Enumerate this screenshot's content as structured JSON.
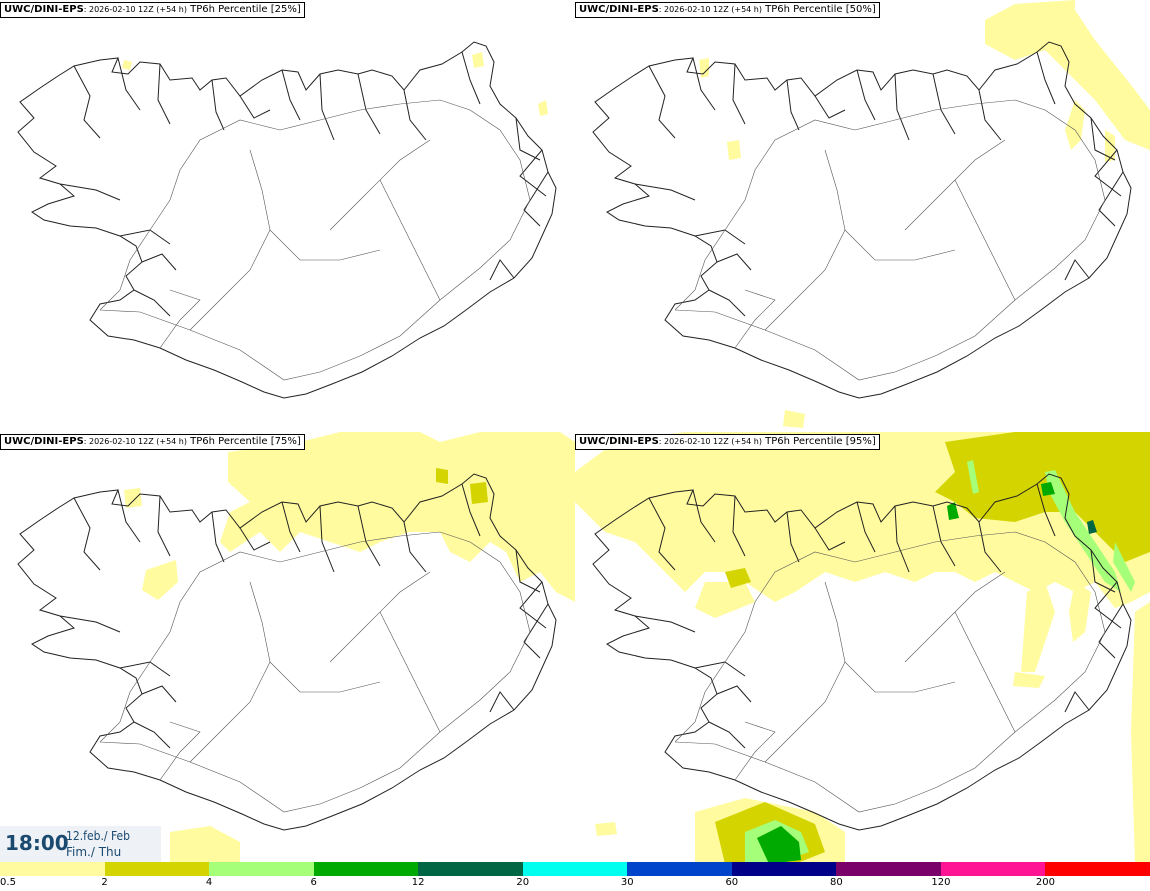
{
  "panels": [
    {
      "source": "UWC/DINI-EPS",
      "run": ": 2026-02-10 12Z (+54 h)",
      "product": " TP6h Percentile [25%]"
    },
    {
      "source": "UWC/DINI-EPS",
      "run": ": 2026-02-10 12Z (+54 h)",
      "product": " TP6h Percentile [50%]"
    },
    {
      "source": "UWC/DINI-EPS",
      "run": ": 2026-02-10 12Z (+54 h)",
      "product": " TP6h Percentile [75%]"
    },
    {
      "source": "UWC/DINI-EPS",
      "run": ": 2026-02-10 12Z (+54 h)",
      "product": " TP6h Percentile [95%]"
    }
  ],
  "valid_time": {
    "hour": "18:00",
    "date_line1": "12.feb./ Feb",
    "date_line2": "Fim./ Thu"
  },
  "colorbar": {
    "colors": [
      "#fffb9e",
      "#d4d400",
      "#a6ff78",
      "#00aa00",
      "#006644",
      "#00ffee",
      "#0044cc",
      "#000088",
      "#7a006a",
      "#ff1493",
      "#ff0000"
    ],
    "ticks": [
      "0.5",
      "2",
      "4",
      "6",
      "12",
      "20",
      "30",
      "60",
      "80",
      "120",
      "200"
    ]
  }
}
